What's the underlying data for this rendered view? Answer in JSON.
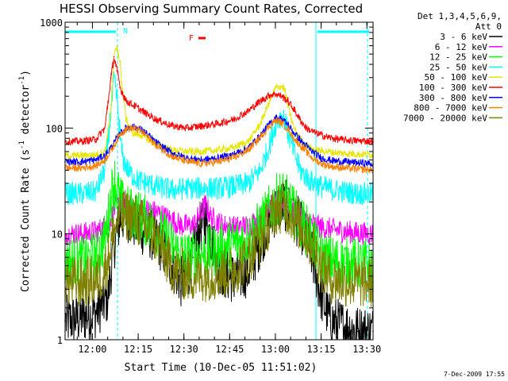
{
  "chart_data": {
    "type": "line",
    "title": "HESSI Observing Summary Count Rates, Corrected",
    "xlabel": "Start Time (10-Dec-05 11:51:02)",
    "ylabel_main": "Corrected Count Rate (s",
    "ylabel_sup1": "-1",
    "ylabel_mid": " detector",
    "ylabel_sup2": "-1",
    "ylabel_end": ")",
    "yscale": "log",
    "ylim": [
      1,
      1000
    ],
    "y_ticks": [
      {
        "value": 1,
        "label": "1"
      },
      {
        "value": 10,
        "label": "10"
      },
      {
        "value": 100,
        "label": "100"
      },
      {
        "value": 1000,
        "label": "1000"
      }
    ],
    "x_unit": "minutes after 11:51:02",
    "xlim": [
      0,
      101
    ],
    "x_ticks": [
      {
        "value": 8.97,
        "label": "12:00"
      },
      {
        "value": 23.97,
        "label": "12:15"
      },
      {
        "value": 38.97,
        "label": "12:30"
      },
      {
        "value": 53.97,
        "label": "12:45"
      },
      {
        "value": 68.97,
        "label": "13:00"
      },
      {
        "value": 83.97,
        "label": "13:15"
      },
      {
        "value": 98.97,
        "label": "13:30"
      }
    ],
    "legend_header": [
      "Det 1,3,4,5,6,9,",
      "Att 0"
    ],
    "legend_position": "right, outside plot",
    "series": [
      {
        "name": "3 - 6 keV",
        "color": "#000000",
        "x": [
          0,
          5,
          10,
          14,
          16,
          18,
          20,
          22,
          25,
          28,
          31,
          35,
          38,
          40,
          42,
          44,
          46,
          48,
          50,
          53,
          56,
          60,
          63,
          66,
          69,
          71,
          73,
          75,
          77,
          79,
          81,
          84,
          87,
          90,
          93,
          96,
          101
        ],
        "y": [
          1.5,
          1.6,
          1.8,
          2.5,
          8,
          14,
          15,
          13,
          11,
          10,
          8,
          5,
          3.5,
          4,
          6,
          11,
          14,
          9,
          5,
          4,
          3.8,
          4.5,
          7,
          12,
          17,
          19,
          18,
          15,
          12,
          9,
          6,
          2.5,
          1.5,
          1.4,
          1.3,
          1.2,
          1.2
        ]
      },
      {
        "name": "6 - 12 keV",
        "color": "#ff00ff",
        "x": [
          0,
          5,
          10,
          14,
          16,
          18,
          20,
          23,
          26,
          30,
          34,
          38,
          42,
          44,
          46,
          48,
          52,
          56,
          60,
          64,
          66,
          68,
          70,
          72,
          74,
          77,
          80,
          84,
          88,
          92,
          96,
          101
        ],
        "y": [
          10,
          10,
          10.5,
          12,
          17,
          20,
          18,
          17,
          17,
          16,
          14,
          12,
          12,
          15,
          19,
          14,
          12,
          11.5,
          12,
          14,
          17,
          19,
          20,
          19,
          17,
          15,
          13,
          11.5,
          11,
          10.5,
          10.2,
          10
        ]
      },
      {
        "name": "12 - 25 keV",
        "color": "#00ff00",
        "x": [
          0,
          5,
          10,
          13,
          15,
          16,
          17,
          19,
          21,
          24,
          27,
          30,
          33,
          36,
          40,
          45,
          50,
          55,
          60,
          64,
          67,
          69,
          71,
          73,
          75,
          78,
          81,
          84,
          88,
          92,
          96,
          101
        ],
        "y": [
          5.5,
          5.5,
          6,
          9,
          22,
          33,
          25,
          18,
          16,
          15,
          13,
          11,
          9,
          7,
          6,
          6.5,
          7,
          8,
          9,
          12,
          17,
          21,
          23,
          20,
          16,
          12,
          9,
          6,
          5.5,
          5.3,
          5.2,
          5
        ]
      },
      {
        "name": "25 - 50 keV",
        "color": "#00ffff",
        "x": [
          0,
          5,
          10,
          13,
          15,
          16,
          17,
          18,
          19,
          21,
          24,
          27,
          30,
          35,
          40,
          45,
          50,
          55,
          60,
          64,
          67,
          69,
          71,
          72,
          73,
          75,
          77,
          80,
          84,
          88,
          92,
          96,
          101
        ],
        "y": [
          24,
          24,
          25,
          40,
          150,
          300,
          180,
          80,
          50,
          38,
          32,
          30,
          28,
          26,
          27,
          27,
          27,
          28,
          30,
          40,
          70,
          110,
          130,
          120,
          90,
          60,
          40,
          32,
          28,
          26,
          25,
          24,
          24
        ]
      },
      {
        "name": "50 - 100 keV",
        "color": "#e6e600",
        "x": [
          0,
          5,
          10,
          13,
          15,
          16,
          17,
          18,
          19,
          20,
          22,
          25,
          30,
          35,
          40,
          45,
          50,
          55,
          60,
          64,
          67,
          69,
          71,
          72,
          73,
          75,
          77,
          79,
          82,
          86,
          90,
          95,
          101
        ],
        "y": [
          55,
          55,
          56,
          60,
          150,
          480,
          600,
          400,
          200,
          120,
          90,
          85,
          70,
          62,
          60,
          60,
          62,
          65,
          75,
          110,
          180,
          240,
          250,
          230,
          160,
          100,
          80,
          68,
          62,
          60,
          58,
          57,
          56
        ]
      },
      {
        "name": "100 - 300 keV",
        "color": "#ff0000",
        "x": [
          0,
          5,
          10,
          13,
          15,
          16,
          17,
          18,
          20,
          23,
          26,
          30,
          35,
          40,
          45,
          50,
          55,
          60,
          64,
          67,
          69,
          71,
          73,
          75,
          77,
          79,
          82,
          86,
          90,
          95,
          101
        ],
        "y": [
          75,
          75,
          78,
          100,
          300,
          470,
          350,
          240,
          180,
          160,
          140,
          120,
          105,
          100,
          105,
          110,
          120,
          145,
          180,
          205,
          210,
          200,
          180,
          150,
          120,
          100,
          90,
          82,
          78,
          76,
          75
        ]
      },
      {
        "name": "300 - 800 keV",
        "color": "#0000ff",
        "x": [
          0,
          5,
          10,
          13,
          16,
          18,
          20,
          22,
          24,
          26,
          30,
          35,
          40,
          45,
          50,
          55,
          60,
          64,
          67,
          69,
          71,
          73,
          75,
          78,
          81,
          84,
          88,
          92,
          96,
          101
        ],
        "y": [
          48,
          48,
          50,
          55,
          72,
          90,
          100,
          103,
          100,
          92,
          72,
          58,
          52,
          50,
          52,
          56,
          65,
          85,
          110,
          125,
          122,
          108,
          90,
          72,
          60,
          52,
          49,
          48,
          47,
          46
        ]
      },
      {
        "name": "800 - 7000 keV",
        "color": "#ff8000",
        "x": [
          0,
          5,
          10,
          13,
          16,
          18,
          20,
          22,
          24,
          26,
          30,
          35,
          40,
          45,
          50,
          55,
          60,
          64,
          67,
          69,
          71,
          73,
          75,
          78,
          81,
          84,
          88,
          92,
          96,
          101
        ],
        "y": [
          42,
          42,
          44,
          50,
          68,
          88,
          98,
          100,
          96,
          88,
          68,
          54,
          48,
          46,
          48,
          52,
          62,
          82,
          105,
          118,
          112,
          98,
          80,
          64,
          52,
          46,
          43,
          42,
          41,
          40
        ]
      },
      {
        "name": "7000 - 20000 keV",
        "color": "#808000",
        "x": [
          0,
          5,
          10,
          13,
          15,
          17,
          19,
          21,
          24,
          27,
          30,
          33,
          36,
          40,
          45,
          50,
          55,
          60,
          64,
          67,
          69,
          71,
          73,
          75,
          78,
          81,
          84,
          87,
          90,
          94,
          98,
          101
        ],
        "y": [
          3.5,
          3.5,
          3.6,
          4.5,
          8,
          13,
          15,
          15,
          13,
          11,
          9,
          6,
          4.5,
          4,
          4,
          4.2,
          4.5,
          6,
          9,
          13,
          17,
          18,
          17,
          14,
          11,
          8,
          5,
          3.8,
          3.6,
          3.5,
          3.5,
          3.5
        ]
      }
    ],
    "annotations": [
      {
        "text": "N",
        "color": "#00ffff"
      },
      {
        "text": "F",
        "color": "#ff0000"
      }
    ],
    "colors": {
      "attenuator_markers": "#00ffff",
      "flare_flag": "#ff0000"
    },
    "footer": "7-Dec-2009 17:55"
  }
}
